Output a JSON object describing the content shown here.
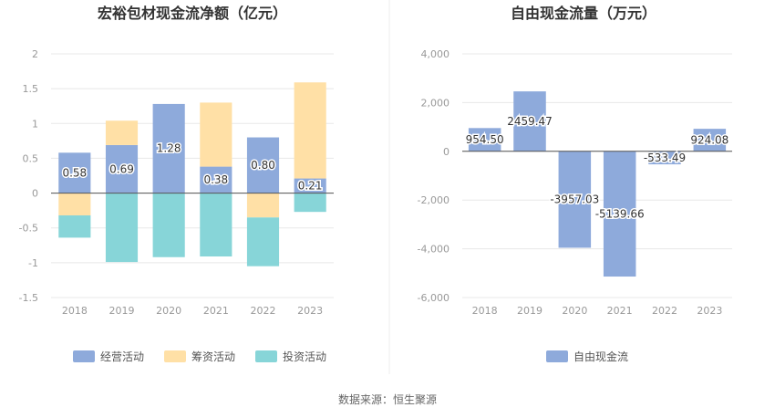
{
  "source_text": "数据来源：恒生聚源",
  "chart_data": [
    {
      "type": "bar",
      "stacked": true,
      "title": "宏裕包材现金流净额（亿元）",
      "categories": [
        "2018",
        "2019",
        "2020",
        "2021",
        "2022",
        "2023"
      ],
      "ylim": [
        -1.5,
        2
      ],
      "yticks": [
        "2",
        "1.5",
        "1",
        "0.5",
        "0",
        "-0.5",
        "-1",
        "-1.5"
      ],
      "grid": true,
      "legend_position": "bottom",
      "series": [
        {
          "name": "经营活动",
          "color": "#8eaadb",
          "values": [
            0.58,
            0.69,
            1.28,
            0.38,
            0.8,
            0.21
          ],
          "labels": [
            "0.58",
            "0.69",
            "1.28",
            "0.38",
            "0.80",
            "0.21"
          ]
        },
        {
          "name": "筹资活动",
          "color": "#ffe0a6",
          "values": [
            -0.32,
            0.35,
            0,
            0.92,
            -0.35,
            1.38
          ]
        },
        {
          "name": "投资活动",
          "color": "#87d5d8",
          "values": [
            -0.32,
            -0.99,
            -0.92,
            -0.91,
            -0.7,
            -0.27
          ]
        }
      ]
    },
    {
      "type": "bar",
      "title": "自由现金流量（万元）",
      "categories": [
        "2018",
        "2019",
        "2020",
        "2021",
        "2022",
        "2023"
      ],
      "ylim": [
        -6000,
        4000
      ],
      "yticks": [
        "4,000",
        "2,000",
        "0",
        "-2,000",
        "-4,000",
        "-6,000"
      ],
      "grid": true,
      "legend_position": "bottom",
      "series": [
        {
          "name": "自由现金流",
          "color": "#8eaadb",
          "values": [
            954.5,
            2459.47,
            -3957.03,
            -5139.66,
            -533.49,
            924.08
          ],
          "labels": [
            "954.50",
            "2459.47",
            "-3957.03",
            "-5139.66",
            "-533.49",
            "924.08"
          ]
        }
      ]
    }
  ]
}
